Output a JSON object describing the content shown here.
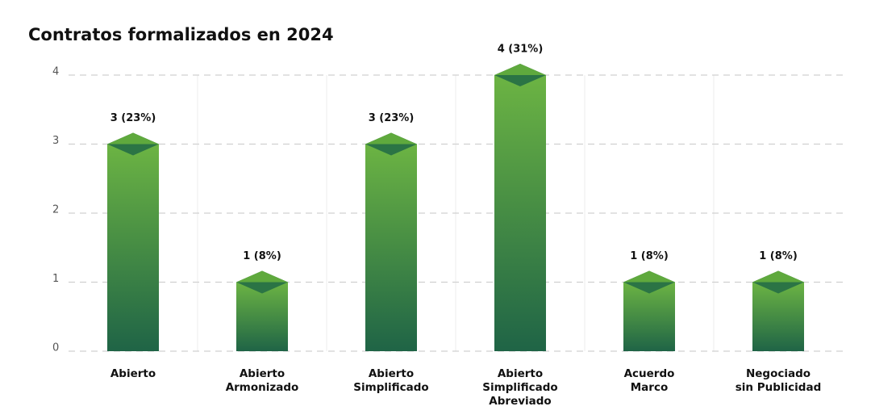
{
  "chart_data": {
    "type": "bar",
    "title": "Contratos formalizados en 2024",
    "categories": [
      "Abierto",
      "Abierto\nArmonizado",
      "Abierto\nSimplificado",
      "Abierto\nSimplificado\nAbreviado",
      "Acuerdo\nMarco",
      "Negociado\nsin Publicidad"
    ],
    "values": [
      3,
      1,
      3,
      4,
      1,
      1
    ],
    "value_labels": [
      "3 (23%)",
      "1 (8%)",
      "3 (23%)",
      "4 (31%)",
      "1 (8%)",
      "1 (8%)"
    ],
    "color": "#6cb443",
    "ylim": [
      0,
      4
    ],
    "yticks": [
      0,
      1,
      2,
      3,
      4
    ],
    "grid": true
  }
}
